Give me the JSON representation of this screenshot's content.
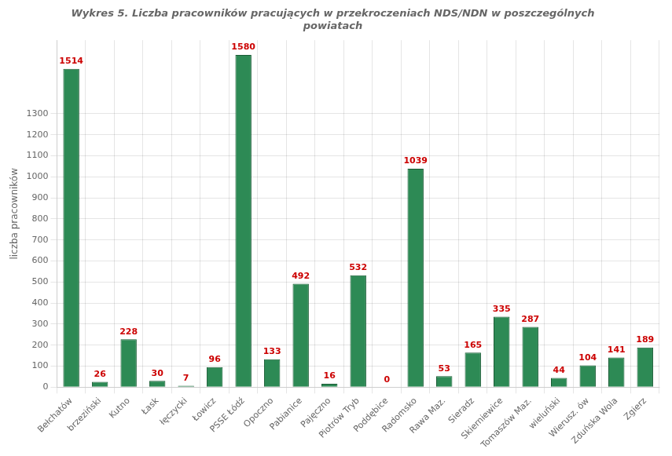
{
  "chart_data": {
    "type": "bar",
    "title": [
      "Wykres 5. Liczba pracowników pracujących w przekroczeniach NDS/NDN w poszczególnych",
      "powiatach"
    ],
    "y_label": "liczba pracowników",
    "categories": [
      "Bełchatów",
      "brzeziński",
      "Kutno",
      "Łask",
      "łęczycki",
      "Łowicz",
      "PSSE Łódź",
      "Opoczno",
      "Pabianice",
      "Pajęczno",
      "Piotrów Tryb",
      "Poddębice",
      "Radomsko",
      "Rawa Maz.",
      "Sieradz",
      "Skierniewice",
      "Tomaszów Maz.",
      "wieluński",
      "Wierusz. ów",
      "Zduńska Wola",
      "Zgierz"
    ],
    "values": [
      1514,
      26,
      228,
      30,
      7,
      96,
      1580,
      133,
      492,
      16,
      532,
      0,
      1039,
      53,
      165,
      335,
      287,
      44,
      104,
      141,
      189
    ],
    "color": "#2d8a55",
    "ylim": [
      0,
      1650
    ],
    "yticks": [
      0,
      100,
      200,
      300,
      400,
      500,
      600,
      700,
      800,
      900,
      1000,
      1100,
      1200,
      1300
    ],
    "grid": true,
    "data_labels": true
  }
}
